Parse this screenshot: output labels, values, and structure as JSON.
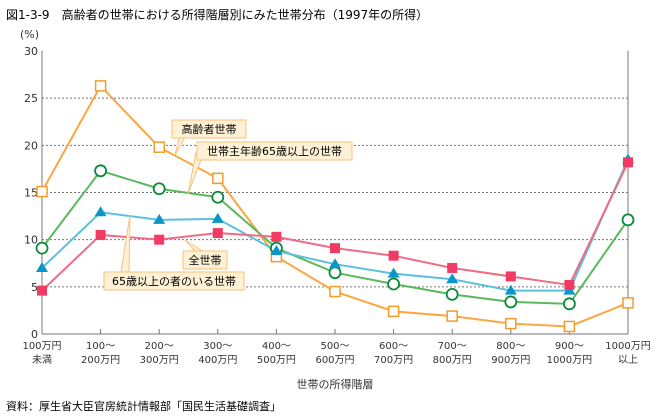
{
  "title": "図1-3-9　高齢者の世帯における所得階層別にみた世帯分布（1997年の所得）",
  "source": "資料：厚生省大臣官房統計情報部「国民生活基礎調査」",
  "chart_data": {
    "type": "line",
    "ylabel": "(%)",
    "xlabel": "世帯の所得階層",
    "ylim": [
      0,
      30
    ],
    "yticks": [
      0,
      5,
      10,
      15,
      20,
      25,
      30
    ],
    "grid": true,
    "categories": [
      [
        "100万円",
        "未満"
      ],
      [
        "100～",
        "200万円"
      ],
      [
        "200～",
        "300万円"
      ],
      [
        "300～",
        "400万円"
      ],
      [
        "400～",
        "500万円"
      ],
      [
        "500～",
        "600万円"
      ],
      [
        "600～",
        "700万円"
      ],
      [
        "700～",
        "800万円"
      ],
      [
        "800～",
        "900万円"
      ],
      [
        "900～",
        "1000万円"
      ],
      [
        "1000万円",
        "以上"
      ]
    ],
    "series": [
      {
        "name": "高齢者世帯",
        "color": "#f9a73e",
        "marker": "square-open",
        "values": [
          15.1,
          26.3,
          19.8,
          16.5,
          8.2,
          4.5,
          2.4,
          1.9,
          1.1,
          0.8,
          3.3
        ]
      },
      {
        "name": "世帯主年齢65歳以上の世帯",
        "color": "#5cb85c",
        "marker": "circle-open",
        "values": [
          9.1,
          17.3,
          15.4,
          14.5,
          9.1,
          6.5,
          5.3,
          4.2,
          3.4,
          3.2,
          12.1
        ]
      },
      {
        "name": "65歳以上の者のいる世帯",
        "color": "#5bc0de",
        "marker": "triangle",
        "values": [
          7.0,
          12.9,
          12.1,
          12.2,
          8.8,
          7.4,
          6.4,
          5.8,
          4.6,
          4.6,
          18.5
        ]
      },
      {
        "name": "全世帯",
        "color": "#f06c84",
        "marker": "square",
        "values": [
          4.6,
          10.5,
          10.0,
          10.7,
          10.3,
          9.1,
          8.3,
          7.0,
          6.1,
          5.2,
          18.2
        ]
      }
    ]
  }
}
